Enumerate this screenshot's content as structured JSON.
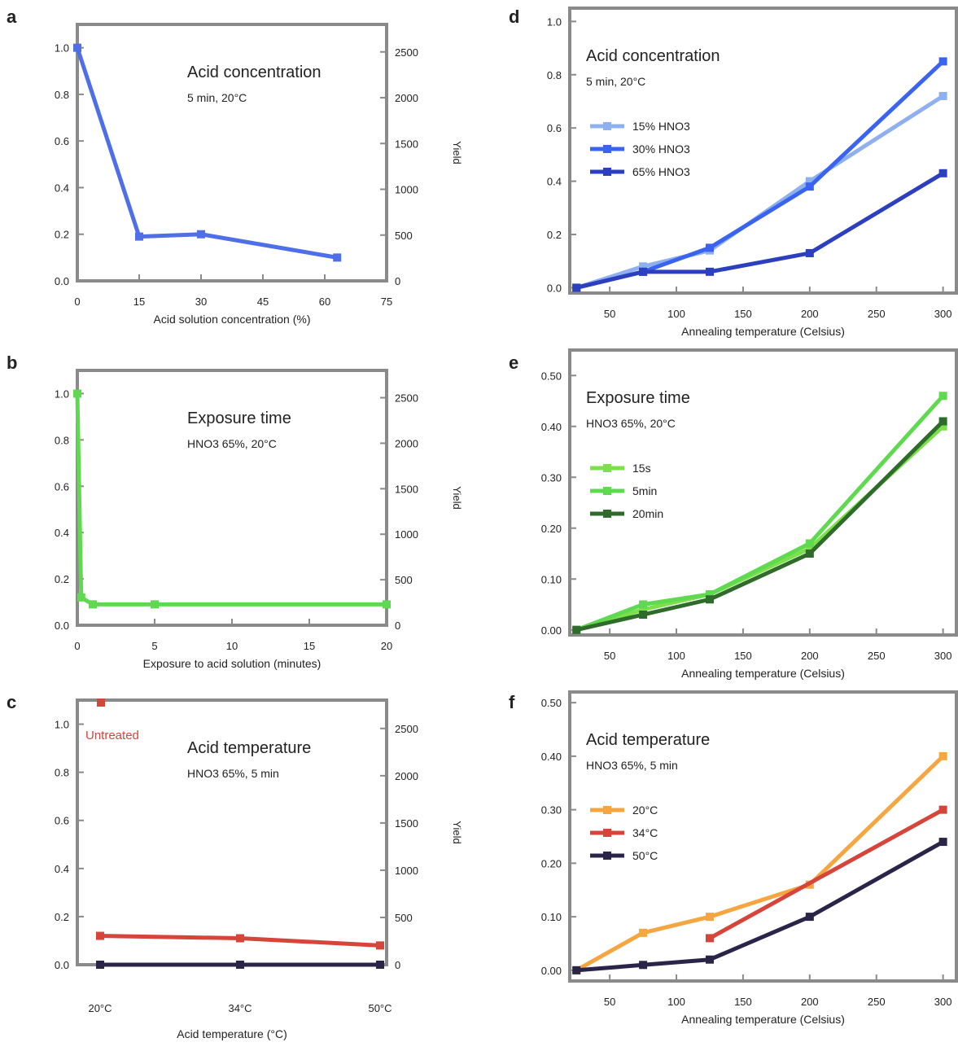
{
  "colors": {
    "frame": "#8a8a8a",
    "text": "#222222",
    "blue_main": "#4f6fe8",
    "blue_light": "#8fb0f0",
    "blue_mid": "#3a64f0",
    "blue_dark": "#2c3fbf",
    "green_light": "#7be04a",
    "green_mid": "#5fd94f",
    "green_dark": "#2f6b2a",
    "orange": "#f5a640",
    "red": "#d6453a",
    "navy": "#2a2448"
  },
  "chart_data": [
    {
      "panel": "a",
      "type": "line",
      "annotation": [
        "Acid concentration",
        "5 min, 20°C"
      ],
      "xlabel": "Acid solution concentration (%)",
      "ylabel": "",
      "ylabel_right": "Yield",
      "xlim": [
        0,
        75
      ],
      "ylim": [
        0,
        1.1
      ],
      "xticks": [
        "0",
        "15",
        "30",
        "45",
        "60",
        "75"
      ],
      "yticks": [
        "0.0",
        "0.2",
        "0.4",
        "0.6",
        "0.8",
        "1.0"
      ],
      "yticks_right": [
        "0",
        "500",
        "1000",
        "1500",
        "2000",
        "2500"
      ],
      "series": [
        {
          "color": "blue_main",
          "x": [
            0,
            15,
            30,
            63
          ],
          "y": [
            1.0,
            0.19,
            0.2,
            0.1
          ]
        }
      ]
    },
    {
      "panel": "b",
      "type": "line",
      "annotation": [
        "Exposure time",
        "HNO3 65%, 20°C"
      ],
      "xlabel": "Exposure to acid solution (minutes)",
      "ylabel": "",
      "ylabel_right": "Yield",
      "xlim": [
        0,
        20
      ],
      "ylim": [
        0,
        1.1
      ],
      "xticks": [
        "0",
        "5",
        "10",
        "15",
        "20"
      ],
      "yticks": [
        "0.0",
        "0.2",
        "0.4",
        "0.6",
        "0.8",
        "1.0"
      ],
      "yticks_right": [
        "0",
        "500",
        "1000",
        "1500",
        "2000",
        "2500"
      ],
      "series": [
        {
          "color": "green_mid",
          "x": [
            0,
            0.25,
            1,
            5,
            20
          ],
          "y": [
            1.0,
            0.12,
            0.09,
            0.09,
            0.09
          ]
        }
      ]
    },
    {
      "panel": "c",
      "type": "line",
      "annotation": [
        "Acid temperature",
        "HNO3 65%, 5 min"
      ],
      "xlabel": "Acid temperature (°C)",
      "ylabel": "",
      "ylabel_right": "Yield",
      "ylim": [
        0,
        1.1
      ],
      "categories": [
        "20°C",
        "34°C",
        "50°C"
      ],
      "yticks": [
        "0.0",
        "0.2",
        "0.4",
        "0.6",
        "0.8",
        "1.0"
      ],
      "yticks_right": [
        "0",
        "500",
        "1000",
        "1500",
        "2000",
        "2500"
      ],
      "marker_text": "Untreated",
      "series": [
        {
          "color": "red",
          "values": [
            0.12,
            0.11,
            0.08
          ]
        },
        {
          "color": "navy",
          "values": [
            0.0,
            0.0,
            0.0
          ]
        }
      ]
    },
    {
      "panel": "d",
      "type": "line",
      "annotation": [
        "Acid concentration",
        "5 min, 20°C"
      ],
      "xlabel": "Annealing temperature (Celsius)",
      "ylabel": "",
      "xlim": [
        20,
        310
      ],
      "ylim": [
        -0.02,
        1.05
      ],
      "xticks": [
        "50",
        "100",
        "150",
        "200",
        "250",
        "300"
      ],
      "yticks": [
        "0.0",
        "0.2",
        "0.4",
        "0.6",
        "0.8",
        "1.0"
      ],
      "legend": [
        "15% HNO3",
        "30% HNO3",
        "65% HNO3"
      ],
      "series": [
        {
          "name": "15% HNO3",
          "color": "blue_light",
          "x": [
            25,
            75,
            125,
            200,
            300
          ],
          "y": [
            0.0,
            0.08,
            0.14,
            0.4,
            0.72
          ]
        },
        {
          "name": "30% HNO3",
          "color": "blue_mid",
          "x": [
            25,
            75,
            125,
            200,
            300
          ],
          "y": [
            0.0,
            0.06,
            0.15,
            0.38,
            0.85
          ]
        },
        {
          "name": "65% HNO3",
          "color": "blue_dark",
          "x": [
            25,
            75,
            125,
            200,
            300
          ],
          "y": [
            0.0,
            0.06,
            0.06,
            0.13,
            0.43
          ]
        }
      ]
    },
    {
      "panel": "e",
      "type": "line",
      "annotation": [
        "Exposure time",
        "HNO3 65%, 20°C"
      ],
      "xlabel": "Annealing temperature (Celsius)",
      "ylabel": "",
      "xlim": [
        20,
        310
      ],
      "ylim": [
        -0.01,
        0.55
      ],
      "xticks": [
        "50",
        "100",
        "150",
        "200",
        "250",
        "300"
      ],
      "yticks": [
        "0.00",
        "0.10",
        "0.20",
        "0.30",
        "0.40",
        "0.50"
      ],
      "legend": [
        "15s",
        "5min",
        "20min"
      ],
      "series": [
        {
          "name": "15s",
          "color": "green_light",
          "x": [
            25,
            75,
            125,
            200,
            300
          ],
          "y": [
            0.0,
            0.04,
            0.07,
            0.16,
            0.4
          ]
        },
        {
          "name": "5min",
          "color": "green_mid",
          "x": [
            25,
            75,
            125,
            200,
            300
          ],
          "y": [
            0.0,
            0.05,
            0.07,
            0.17,
            0.46
          ]
        },
        {
          "name": "20min",
          "color": "green_dark",
          "x": [
            25,
            75,
            125,
            200,
            300
          ],
          "y": [
            0.0,
            0.03,
            0.06,
            0.15,
            0.41
          ]
        }
      ]
    },
    {
      "panel": "f",
      "type": "line",
      "annotation": [
        "Acid temperature",
        "HNO3 65%, 5 min"
      ],
      "xlabel": "Annealing temperature (Celsius)",
      "ylabel": "",
      "xlim": [
        20,
        310
      ],
      "ylim": [
        -0.02,
        0.52
      ],
      "xticks": [
        "50",
        "100",
        "150",
        "200",
        "250",
        "300"
      ],
      "yticks": [
        "0.00",
        "0.10",
        "0.20",
        "0.30",
        "0.40",
        "0.50"
      ],
      "legend": [
        "20°C",
        "34°C",
        "50°C"
      ],
      "series": [
        {
          "name": "20°C",
          "color": "orange",
          "x": [
            25,
            75,
            125,
            200,
            300
          ],
          "y": [
            0.0,
            0.07,
            0.1,
            0.16,
            0.4
          ]
        },
        {
          "name": "34°C",
          "color": "red",
          "x": [
            125,
            300
          ],
          "y": [
            0.06,
            0.3
          ]
        },
        {
          "name": "50°C",
          "color": "navy",
          "x": [
            25,
            75,
            125,
            200,
            300
          ],
          "y": [
            0.0,
            0.01,
            0.02,
            0.1,
            0.24
          ]
        }
      ]
    }
  ]
}
